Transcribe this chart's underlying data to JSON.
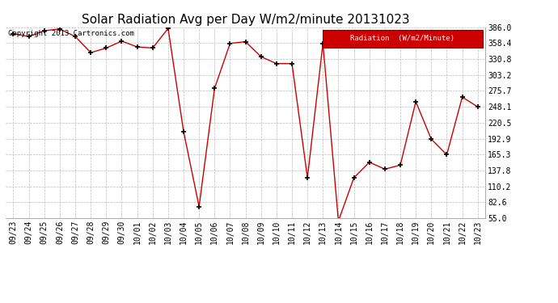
{
  "title": "Solar Radiation Avg per Day W/m2/minute 20131023",
  "copyright": "Copyright 2013 Cartronics.com",
  "legend_label": "Radiation  (W/m2/Minute)",
  "x_labels": [
    "09/23",
    "09/24",
    "09/25",
    "09/26",
    "09/27",
    "09/28",
    "09/29",
    "09/30",
    "10/01",
    "10/02",
    "10/03",
    "10/04",
    "10/05",
    "10/06",
    "10/07",
    "10/08",
    "10/09",
    "10/10",
    "10/11",
    "10/12",
    "10/13",
    "10/14",
    "10/15",
    "10/16",
    "10/17",
    "10/18",
    "10/19",
    "10/20",
    "10/21",
    "10/22",
    "10/23"
  ],
  "y_values": [
    375.0,
    370.0,
    380.0,
    383.0,
    370.0,
    342.0,
    350.0,
    362.0,
    352.0,
    350.0,
    384.0,
    205.0,
    75.0,
    280.0,
    358.0,
    361.0,
    335.0,
    323.0,
    323.0,
    125.0,
    358.0,
    50.0,
    125.0,
    152.0,
    140.0,
    147.0,
    257.0,
    192.0,
    165.0,
    265.0,
    248.0
  ],
  "line_color": "#cc0000",
  "marker_color": "#000000",
  "background_color": "#ffffff",
  "grid_color": "#bbbbbb",
  "ylim_min": 55.0,
  "ylim_max": 386.0,
  "yticks": [
    55.0,
    82.6,
    110.2,
    137.8,
    165.3,
    192.9,
    220.5,
    248.1,
    275.7,
    303.2,
    330.8,
    358.4,
    386.0
  ],
  "legend_bg_color": "#cc0000",
  "legend_text_color": "#ffffff",
  "title_fontsize": 11,
  "tick_fontsize": 7,
  "copyright_fontsize": 6.5
}
